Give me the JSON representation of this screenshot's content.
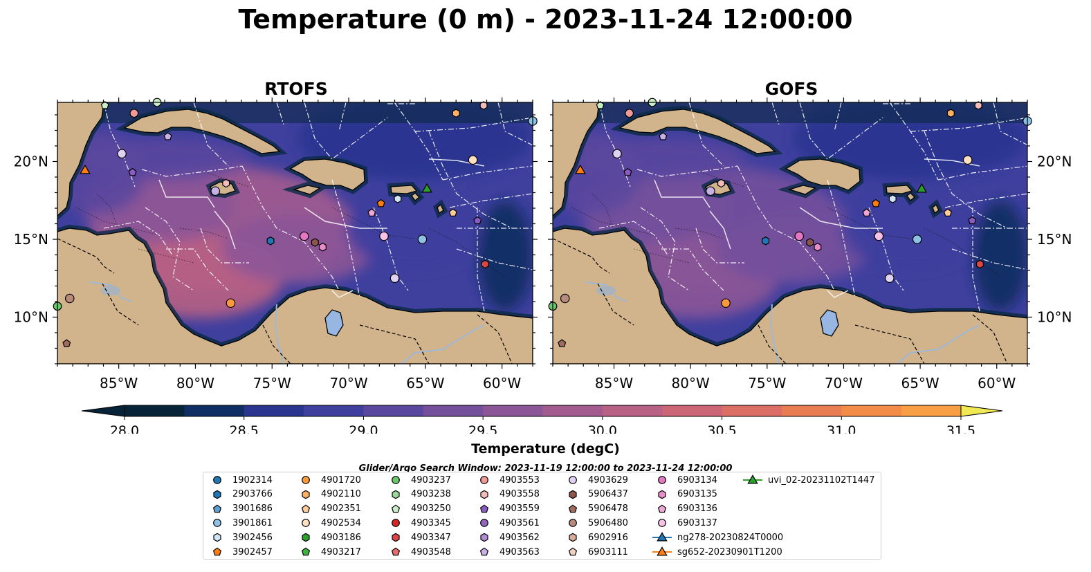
{
  "title": "Temperature (0 m) - 2023-11-24 12:00:00",
  "maps": [
    {
      "title": "RTOFS",
      "variant": "rtofs"
    },
    {
      "title": "GOFS",
      "variant": "gofs"
    }
  ],
  "axes": {
    "lon_ticks": [
      "85°W",
      "80°W",
      "75°W",
      "70°W",
      "65°W",
      "60°W"
    ],
    "lon_values": [
      -85,
      -80,
      -75,
      -70,
      -65,
      -60
    ],
    "lat_ticks": [
      "20°N",
      "15°N",
      "10°N"
    ],
    "lat_values": [
      20,
      15,
      10
    ],
    "lon_range": [
      -89,
      -58
    ],
    "lat_range": [
      7,
      23.8
    ]
  },
  "colorbar": {
    "label": "Temperature (degC)",
    "ticks": [
      "28.0",
      "28.5",
      "29.0",
      "29.5",
      "30.0",
      "30.5",
      "31.0",
      "31.5"
    ],
    "min": 28.0,
    "max": 31.5,
    "step": 0.25,
    "extend": "both",
    "colors": [
      "#062338",
      "#0f2e63",
      "#2a3590",
      "#3f3f9e",
      "#5a479f",
      "#74509c",
      "#8c5597",
      "#a35b8f",
      "#b86184",
      "#cb6676",
      "#db6f65",
      "#e87c53",
      "#f28c48",
      "#f89f45",
      "#fbb446",
      "#fbcb4c",
      "#f1e856"
    ]
  },
  "search_window": "Glider/Argo Search Window: 2023-11-19 12:00:00 to 2023-11-24 12:00:00",
  "legend": [
    {
      "label": "1902314",
      "marker": "circle",
      "color": "#1f77b4"
    },
    {
      "label": "2903766",
      "marker": "hexagon",
      "color": "#1f77b4"
    },
    {
      "label": "3901686",
      "marker": "pentagon",
      "color": "#5c9fd0"
    },
    {
      "label": "3901861",
      "marker": "circle",
      "color": "#8ec1e6"
    },
    {
      "label": "3902456",
      "marker": "hexagon",
      "color": "#d0e6f5"
    },
    {
      "label": "3902457",
      "marker": "pentagon",
      "color": "#ff7f0e"
    },
    {
      "label": "4901720",
      "marker": "circle",
      "color": "#ff9a3c"
    },
    {
      "label": "4902110",
      "marker": "hexagon",
      "color": "#ffb266"
    },
    {
      "label": "4902351",
      "marker": "pentagon",
      "color": "#ffcc99"
    },
    {
      "label": "4902534",
      "marker": "circle",
      "color": "#ffe0c2"
    },
    {
      "label": "4903186",
      "marker": "hexagon",
      "color": "#2ca02c"
    },
    {
      "label": "4903217",
      "marker": "pentagon",
      "color": "#3cb33c"
    },
    {
      "label": "4903237",
      "marker": "circle",
      "color": "#6cc76c"
    },
    {
      "label": "4903238",
      "marker": "hexagon",
      "color": "#9ad99a"
    },
    {
      "label": "4903250",
      "marker": "pentagon",
      "color": "#c7eec7"
    },
    {
      "label": "4903345",
      "marker": "circle",
      "color": "#d62728"
    },
    {
      "label": "4903347",
      "marker": "hexagon",
      "color": "#e04444"
    },
    {
      "label": "4903548",
      "marker": "pentagon",
      "color": "#e86a6a"
    },
    {
      "label": "4903553",
      "marker": "circle",
      "color": "#f09999"
    },
    {
      "label": "4903558",
      "marker": "hexagon",
      "color": "#f5bcbc"
    },
    {
      "label": "4903559",
      "marker": "pentagon",
      "color": "#8a5cc2"
    },
    {
      "label": "4903561",
      "marker": "circle",
      "color": "#9467bd"
    },
    {
      "label": "4903562",
      "marker": "hexagon",
      "color": "#b08ed6"
    },
    {
      "label": "4903563",
      "marker": "pentagon",
      "color": "#c9b1e6"
    },
    {
      "label": "4903629",
      "marker": "circle",
      "color": "#e0d2f2"
    },
    {
      "label": "5906437",
      "marker": "hexagon",
      "color": "#8c564b"
    },
    {
      "label": "5906478",
      "marker": "pentagon",
      "color": "#a06c5e"
    },
    {
      "label": "5906480",
      "marker": "circle",
      "color": "#b88a7c"
    },
    {
      "label": "6902916",
      "marker": "hexagon",
      "color": "#d9ac9c"
    },
    {
      "label": "6903111",
      "marker": "pentagon",
      "color": "#f0d2c4"
    },
    {
      "label": "6903134",
      "marker": "circle",
      "color": "#e377c2"
    },
    {
      "label": "6903135",
      "marker": "hexagon",
      "color": "#e88ccb"
    },
    {
      "label": "6903136",
      "marker": "pentagon",
      "color": "#f0a6d8"
    },
    {
      "label": "6903137",
      "marker": "circle",
      "color": "#f7c2e6"
    },
    {
      "label": "ng278-20230824T0000",
      "marker": "triangle-line",
      "color": "#1f77b4"
    },
    {
      "label": "sg652-20230901T1200",
      "marker": "triangle-line",
      "color": "#ff7f0e"
    },
    {
      "label": "uvi_02-20231102T1447",
      "marker": "triangle-line",
      "color": "#2ca02c"
    }
  ],
  "floats_on_map": [
    {
      "lon": -87.2,
      "lat": 19.4,
      "marker": "triangle",
      "color": "#ff7f0e"
    },
    {
      "lon": -64.9,
      "lat": 18.2,
      "marker": "triangle",
      "color": "#2ca02c"
    },
    {
      "lon": -85.9,
      "lat": 23.6,
      "marker": "pentagon",
      "color": "#c7eec7"
    },
    {
      "lon": -84.0,
      "lat": 23.1,
      "marker": "circle",
      "color": "#f09999"
    },
    {
      "lon": -82.5,
      "lat": 23.8,
      "marker": "circle",
      "color": "#c7eec7"
    },
    {
      "lon": -81.8,
      "lat": 21.6,
      "marker": "pentagon",
      "color": "#c9b1e6"
    },
    {
      "lon": -84.8,
      "lat": 20.5,
      "marker": "circle",
      "color": "#e0d2f2"
    },
    {
      "lon": -84.1,
      "lat": 19.3,
      "marker": "pentagon",
      "color": "#8a5cc2"
    },
    {
      "lon": -78.7,
      "lat": 18.1,
      "marker": "circle",
      "color": "#c9b1e6"
    },
    {
      "lon": -78.0,
      "lat": 18.6,
      "marker": "hexagon",
      "color": "#f5bcbc"
    },
    {
      "lon": -67.9,
      "lat": 17.3,
      "marker": "pentagon",
      "color": "#ff7f0e"
    },
    {
      "lon": -66.8,
      "lat": 17.6,
      "marker": "hexagon",
      "color": "#d0e6f5"
    },
    {
      "lon": -63.0,
      "lat": 23.1,
      "marker": "hexagon",
      "color": "#ffb266"
    },
    {
      "lon": -61.2,
      "lat": 23.6,
      "marker": "hexagon",
      "color": "#f5bcbc"
    },
    {
      "lon": -58.0,
      "lat": 22.6,
      "marker": "circle",
      "color": "#8ec1e6"
    },
    {
      "lon": -61.9,
      "lat": 20.1,
      "marker": "circle",
      "color": "#ffe0c2"
    },
    {
      "lon": -75.1,
      "lat": 14.9,
      "marker": "hexagon",
      "color": "#1f77b4"
    },
    {
      "lon": -72.9,
      "lat": 15.2,
      "marker": "circle",
      "color": "#e377c2"
    },
    {
      "lon": -72.2,
      "lat": 14.8,
      "marker": "hexagon",
      "color": "#8c564b"
    },
    {
      "lon": -71.7,
      "lat": 14.5,
      "marker": "hexagon",
      "color": "#e88ccb"
    },
    {
      "lon": -68.5,
      "lat": 16.7,
      "marker": "pentagon",
      "color": "#f0a6d8"
    },
    {
      "lon": -67.7,
      "lat": 15.2,
      "marker": "circle",
      "color": "#f7c2e6"
    },
    {
      "lon": -65.2,
      "lat": 15.0,
      "marker": "circle",
      "color": "#8ec1e6"
    },
    {
      "lon": -63.2,
      "lat": 16.7,
      "marker": "pentagon",
      "color": "#ffcc99"
    },
    {
      "lon": -61.6,
      "lat": 16.2,
      "marker": "pentagon",
      "color": "#8a5cc2"
    },
    {
      "lon": -61.1,
      "lat": 13.4,
      "marker": "hexagon",
      "color": "#e04444"
    },
    {
      "lon": -67.0,
      "lat": 12.5,
      "marker": "circle",
      "color": "#e0d2f2"
    },
    {
      "lon": -88.2,
      "lat": 11.2,
      "marker": "circle",
      "color": "#b88a7c"
    },
    {
      "lon": -89.0,
      "lat": 10.7,
      "marker": "circle",
      "color": "#6cc76c"
    },
    {
      "lon": -77.7,
      "lat": 10.9,
      "marker": "circle",
      "color": "#ff9a3c"
    },
    {
      "lon": -88.4,
      "lat": 8.3,
      "marker": "pentagon",
      "color": "#a06c5e"
    }
  ]
}
